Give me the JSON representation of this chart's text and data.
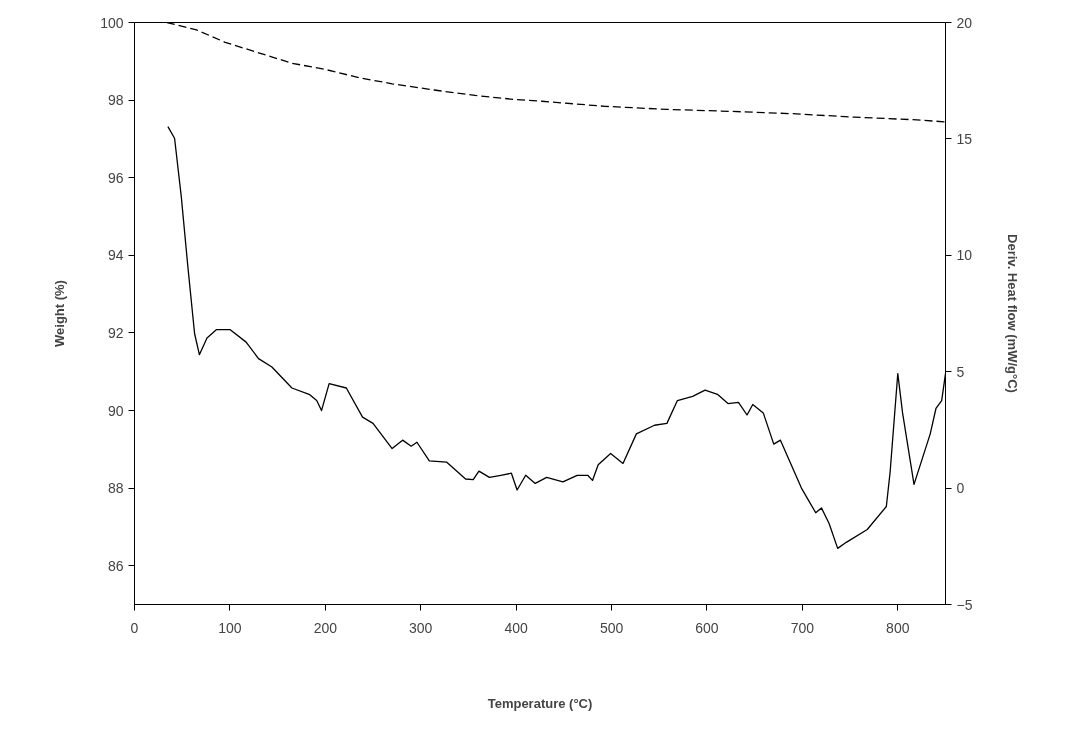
{
  "chart_data": {
    "type": "line",
    "xlabel": "Temperature (°C)",
    "ylabel": "Weight (%)",
    "y2label": "Deriv. Heat flow (mW/g°C)",
    "xlim": [
      0,
      850
    ],
    "xticks": [
      0,
      100,
      200,
      300,
      400,
      500,
      600,
      700,
      800
    ],
    "ylim": [
      85,
      100
    ],
    "yticks": [
      86,
      88,
      90,
      92,
      94,
      96,
      98,
      100
    ],
    "y2lim": [
      -5,
      20
    ],
    "y2ticks": [
      -5,
      0,
      5,
      10,
      15,
      20
    ],
    "grid": false,
    "series": [
      {
        "color": "#000000",
        "line_style": "dashed",
        "x": [
          34,
          65,
          95,
          130,
          165,
          200,
          235,
          270,
          314,
          357,
          401,
          427,
          493,
          558,
          624,
          689,
          755,
          820,
          849
        ],
        "values": [
          100.0,
          99.81,
          99.49,
          99.22,
          98.95,
          98.79,
          98.58,
          98.42,
          98.26,
          98.12,
          98.01,
          97.97,
          97.84,
          97.76,
          97.71,
          97.65,
          97.56,
          97.49,
          97.44
        ]
      },
      {
        "color": "#000000",
        "line_style": "solid",
        "axis": "y2",
        "x": [
          35,
          42,
          49,
          56,
          63,
          68,
          76,
          86,
          100,
          117,
          130,
          144,
          165,
          183,
          191,
          196,
          204,
          222,
          239,
          250,
          270,
          281,
          290,
          296,
          309,
          327,
          347,
          355,
          361,
          372,
          384,
          395,
          401,
          410,
          420,
          432,
          449,
          464,
          475,
          480,
          486,
          499,
          512,
          526,
          545,
          558,
          569,
          585,
          598,
          611,
          622,
          633,
          642,
          648,
          659,
          670,
          677,
          699,
          714,
          720,
          728,
          737,
          746,
          768,
          788,
          792,
          800,
          805,
          817,
          834,
          840,
          846,
          850
        ],
        "values": [
          15.53,
          15.03,
          12.53,
          9.48,
          6.63,
          5.73,
          6.45,
          6.81,
          6.81,
          6.27,
          5.56,
          5.2,
          4.3,
          4.03,
          3.76,
          3.33,
          4.49,
          4.3,
          3.05,
          2.78,
          1.7,
          2.06,
          1.8,
          1.97,
          1.17,
          1.12,
          0.39,
          0.36,
          0.73,
          0.46,
          0.55,
          0.64,
          -0.08,
          0.55,
          0.2,
          0.46,
          0.27,
          0.55,
          0.55,
          0.33,
          1.0,
          1.49,
          1.06,
          2.33,
          2.7,
          2.78,
          3.76,
          3.94,
          4.21,
          4.03,
          3.63,
          3.68,
          3.14,
          3.59,
          3.23,
          1.89,
          2.06,
          0.0,
          -1.06,
          -0.85,
          -1.52,
          -2.59,
          -2.33,
          -1.78,
          -0.79,
          0.71,
          4.92,
          3.23,
          0.16,
          2.33,
          3.42,
          3.76,
          4.92
        ]
      }
    ]
  }
}
